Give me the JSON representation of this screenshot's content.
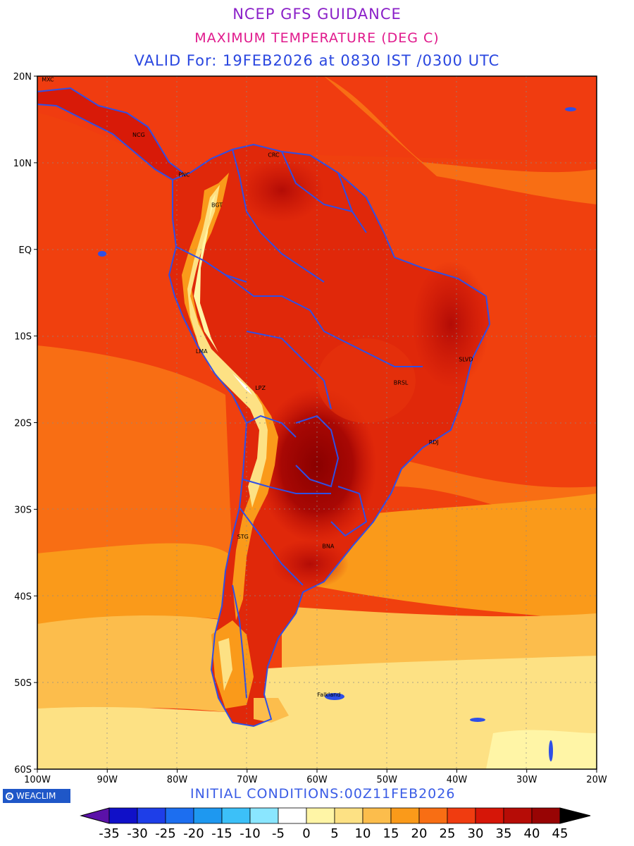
{
  "header": {
    "title": "NCEP GFS GUIDANCE",
    "subtitle": "MAXIMUM TEMPERATURE (DEG C)",
    "valid": "VALID For: 19FEB2026 at 0830 IST /0300 UTC",
    "title_color": "#8a1fc8",
    "subtitle_color": "#e0198c",
    "valid_color": "#2a47e0"
  },
  "map": {
    "lon_labels": [
      "100W",
      "90W",
      "80W",
      "70W",
      "60W",
      "50W",
      "40W",
      "30W",
      "20W"
    ],
    "lat_labels": [
      "20N",
      "10N",
      "EQ",
      "10S",
      "20S",
      "30S",
      "40S",
      "50S",
      "60S"
    ],
    "boundary_color": "#2f4fe6",
    "cities": [
      {
        "name": "MXC",
        "lon": -98.5,
        "lat": 19.4
      },
      {
        "name": "NCG",
        "lon": -85.5,
        "lat": 13.0
      },
      {
        "name": "CRC",
        "lon": -66.2,
        "lat": 10.7
      },
      {
        "name": "PNC",
        "lon": -79.0,
        "lat": 8.4
      },
      {
        "name": "BGT",
        "lon": -74.3,
        "lat": 4.9
      },
      {
        "name": "LMA",
        "lon": -76.5,
        "lat": -12.0
      },
      {
        "name": "SLVD",
        "lon": -38.7,
        "lat": -12.9
      },
      {
        "name": "BRSL",
        "lon": -48.0,
        "lat": -15.6
      },
      {
        "name": "LPZ",
        "lon": -68.1,
        "lat": -16.2
      },
      {
        "name": "RDJ",
        "lon": -43.3,
        "lat": -22.5
      },
      {
        "name": "STG",
        "lon": -70.6,
        "lat": -33.4
      },
      {
        "name": "BNA",
        "lon": -58.4,
        "lat": -34.5
      },
      {
        "name": "Falkland",
        "lon": -58.3,
        "lat": -51.6
      }
    ]
  },
  "footer": {
    "logo_text": "WEACLIM",
    "initial_conditions": "INITIAL CONDITIONS:00Z11FEB2026",
    "initial_color": "#3a5ce6"
  },
  "colorbar": {
    "labels": [
      "-35",
      "-30",
      "-25",
      "-20",
      "-15",
      "-10",
      "-5",
      "0",
      "5",
      "10",
      "15",
      "20",
      "25",
      "30",
      "35",
      "40",
      "45"
    ],
    "colors": [
      "#5b11a8",
      "#1010c8",
      "#1e3ee8",
      "#1c6ef0",
      "#1e98f0",
      "#3cc0f8",
      "#8ae6ff",
      "#ffffff",
      "#fff5a6",
      "#fde184",
      "#fcbd4c",
      "#fa9a1a",
      "#f86e14",
      "#f03c10",
      "#d61608",
      "#b60c06",
      "#980404",
      "#000000"
    ]
  }
}
